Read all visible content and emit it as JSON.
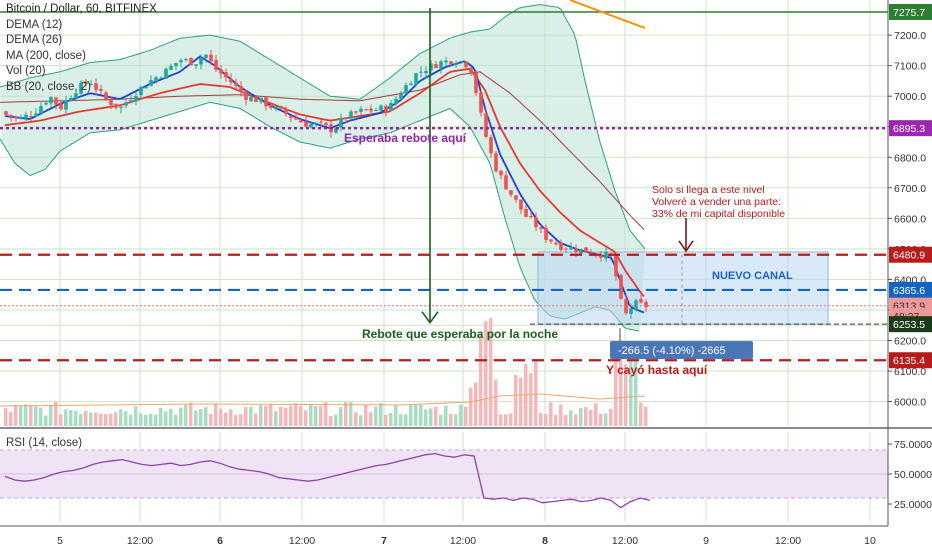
{
  "chart_data": {
    "type": "candlestick",
    "title": "Bitcoin / Dollar, 60, BITFINEX",
    "indicators": [
      "DEMA (12)",
      "DEMA (26)",
      "MA (200, close)",
      "Vol (20)",
      "BB (20, close, 2)"
    ],
    "x_ticks": [
      "5",
      "12:00",
      "6",
      "12:00",
      "7",
      "12:00",
      "8",
      "12:00",
      "9",
      "12:00",
      "10"
    ],
    "y_ticks": [
      "7200.0",
      "7100.0",
      "7000.0",
      "6900.0",
      "6800.0",
      "6700.0",
      "6600.0",
      "6500.0",
      "6400.0",
      "6300.0",
      "6200.0",
      "6100.0",
      "6000.0"
    ],
    "ylim": [
      5920,
      7315
    ],
    "price_tags": [
      {
        "label": "7275.7",
        "value": 7275.7,
        "color": "#2e7d32",
        "text_color": "#ffffff"
      },
      {
        "label": "6895.3",
        "value": 6895.3,
        "color": "#9c27b0",
        "text_color": "#ffffff"
      },
      {
        "label": "6480.9",
        "value": 6480.9,
        "color": "#b71c1c",
        "text_color": "#ffffff"
      },
      {
        "label": "6365.6",
        "value": 6365.6,
        "color": "#1565c0",
        "text_color": "#ffffff"
      },
      {
        "label": "6313.9",
        "value": 6313.9,
        "color": "#ef9a9a",
        "text_color": "#333333"
      },
      {
        "label": "48:27",
        "value": 6280,
        "color": "#ef9a9a",
        "text_color": "#333333"
      },
      {
        "label": "6253.5",
        "value": 6253.5,
        "color": "#1b3a1b",
        "text_color": "#ffffff"
      },
      {
        "label": "6135.4",
        "value": 6135.4,
        "color": "#b71c1c",
        "text_color": "#ffffff"
      }
    ],
    "horizontal_levels": [
      {
        "value": 7275.7,
        "color": "#2e7d32",
        "style": "solid"
      },
      {
        "value": 6895.3,
        "color": "#8e24aa",
        "style": "dotted"
      },
      {
        "value": 6480.9,
        "color": "#b71c1c",
        "style": "dashed"
      },
      {
        "value": 6365.6,
        "color": "#1565c0",
        "style": "dashed"
      },
      {
        "value": 6313.9,
        "color": "#e57373",
        "style": "dotted-thin"
      },
      {
        "value": 6253.5,
        "color": "#333333",
        "style": "dashed-thin"
      },
      {
        "value": 6135.4,
        "color": "#b71c1c",
        "style": "dashed"
      }
    ],
    "annotations": [
      {
        "text": "Esperaba rebote aquí",
        "color": "#8e24aa"
      },
      {
        "text": "Rebote que esperaba por la noche",
        "color": "#1b5e20"
      },
      {
        "text": "Solo si llega a este nivel",
        "color": "#b71c1c"
      },
      {
        "text": "Volveré a vender una parte:",
        "color": "#b71c1c"
      },
      {
        "text": "33% de mi capital disponible",
        "color": "#b71c1c"
      },
      {
        "text": "NUEVO CANAL",
        "color": "#1565c0"
      },
      {
        "text": "-266.5 (-4.10%) -2665",
        "color": "#ffffff"
      },
      {
        "text": "Y cayó hasta aquí",
        "color": "#b71c1c"
      }
    ],
    "rsi": {
      "label": "RSI (14, close)",
      "y_ticks": [
        "75.0000",
        "50.0000",
        "25.0000"
      ],
      "ylim": [
        10,
        85
      ],
      "band": [
        30,
        70
      ],
      "values": [
        48,
        45,
        44,
        45,
        47,
        50,
        52,
        53,
        55,
        58,
        60,
        61,
        62,
        60,
        58,
        57,
        58,
        59,
        57,
        58,
        60,
        61,
        59,
        56,
        54,
        53,
        52,
        50,
        47,
        46,
        45,
        44,
        45,
        47,
        49,
        51,
        53,
        55,
        57,
        58,
        60,
        62,
        64,
        66,
        67,
        65,
        64,
        66,
        65,
        30,
        29,
        30,
        28,
        30,
        29,
        26,
        27,
        28,
        29,
        27,
        28,
        30,
        28,
        22,
        27,
        30,
        28
      ]
    },
    "colors": {
      "up": "#26a69a",
      "down": "#ef5350",
      "dema12": "#1e3fd1",
      "dema26": "#e53935",
      "ma200": "#a33e3e",
      "bb": "#2e9f80",
      "trend": "#ff8f00"
    }
  }
}
